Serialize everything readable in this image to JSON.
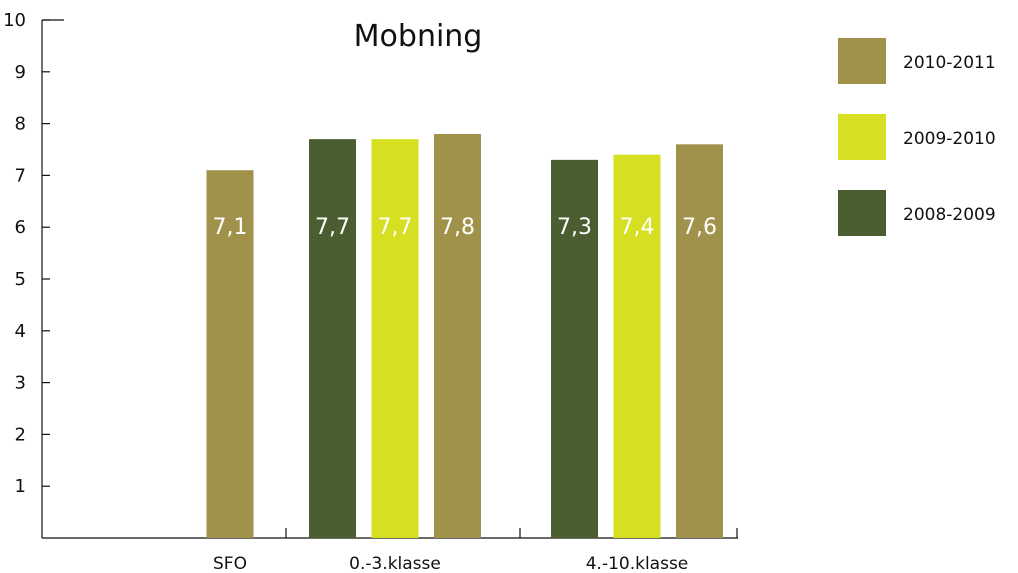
{
  "chart_data": {
    "type": "bar",
    "title": "Mobning",
    "xlabel": "",
    "ylabel": "",
    "ylim": [
      0,
      10
    ],
    "yticks": [
      1,
      2,
      3,
      4,
      5,
      6,
      7,
      8,
      9,
      10
    ],
    "categories": [
      "SFO",
      "0.-3.klasse",
      "4.-10.klasse"
    ],
    "series": [
      {
        "name": "2008-2009",
        "color": "#4a5e31",
        "values": [
          null,
          7.7,
          7.3
        ],
        "labels": [
          null,
          "7,7",
          "7,3"
        ]
      },
      {
        "name": "2009-2010",
        "color": "#d6df22",
        "values": [
          null,
          7.7,
          7.4
        ],
        "labels": [
          null,
          "7,7",
          "7,4"
        ]
      },
      {
        "name": "2010-2011",
        "color": "#a0924a",
        "values": [
          7.1,
          7.8,
          7.6
        ],
        "labels": [
          "7,1",
          "7,8",
          "7,6"
        ]
      }
    ],
    "legend": {
      "placement": "right",
      "order": [
        "2010-2011",
        "2009-2010",
        "2008-2009"
      ]
    },
    "grid": false
  }
}
